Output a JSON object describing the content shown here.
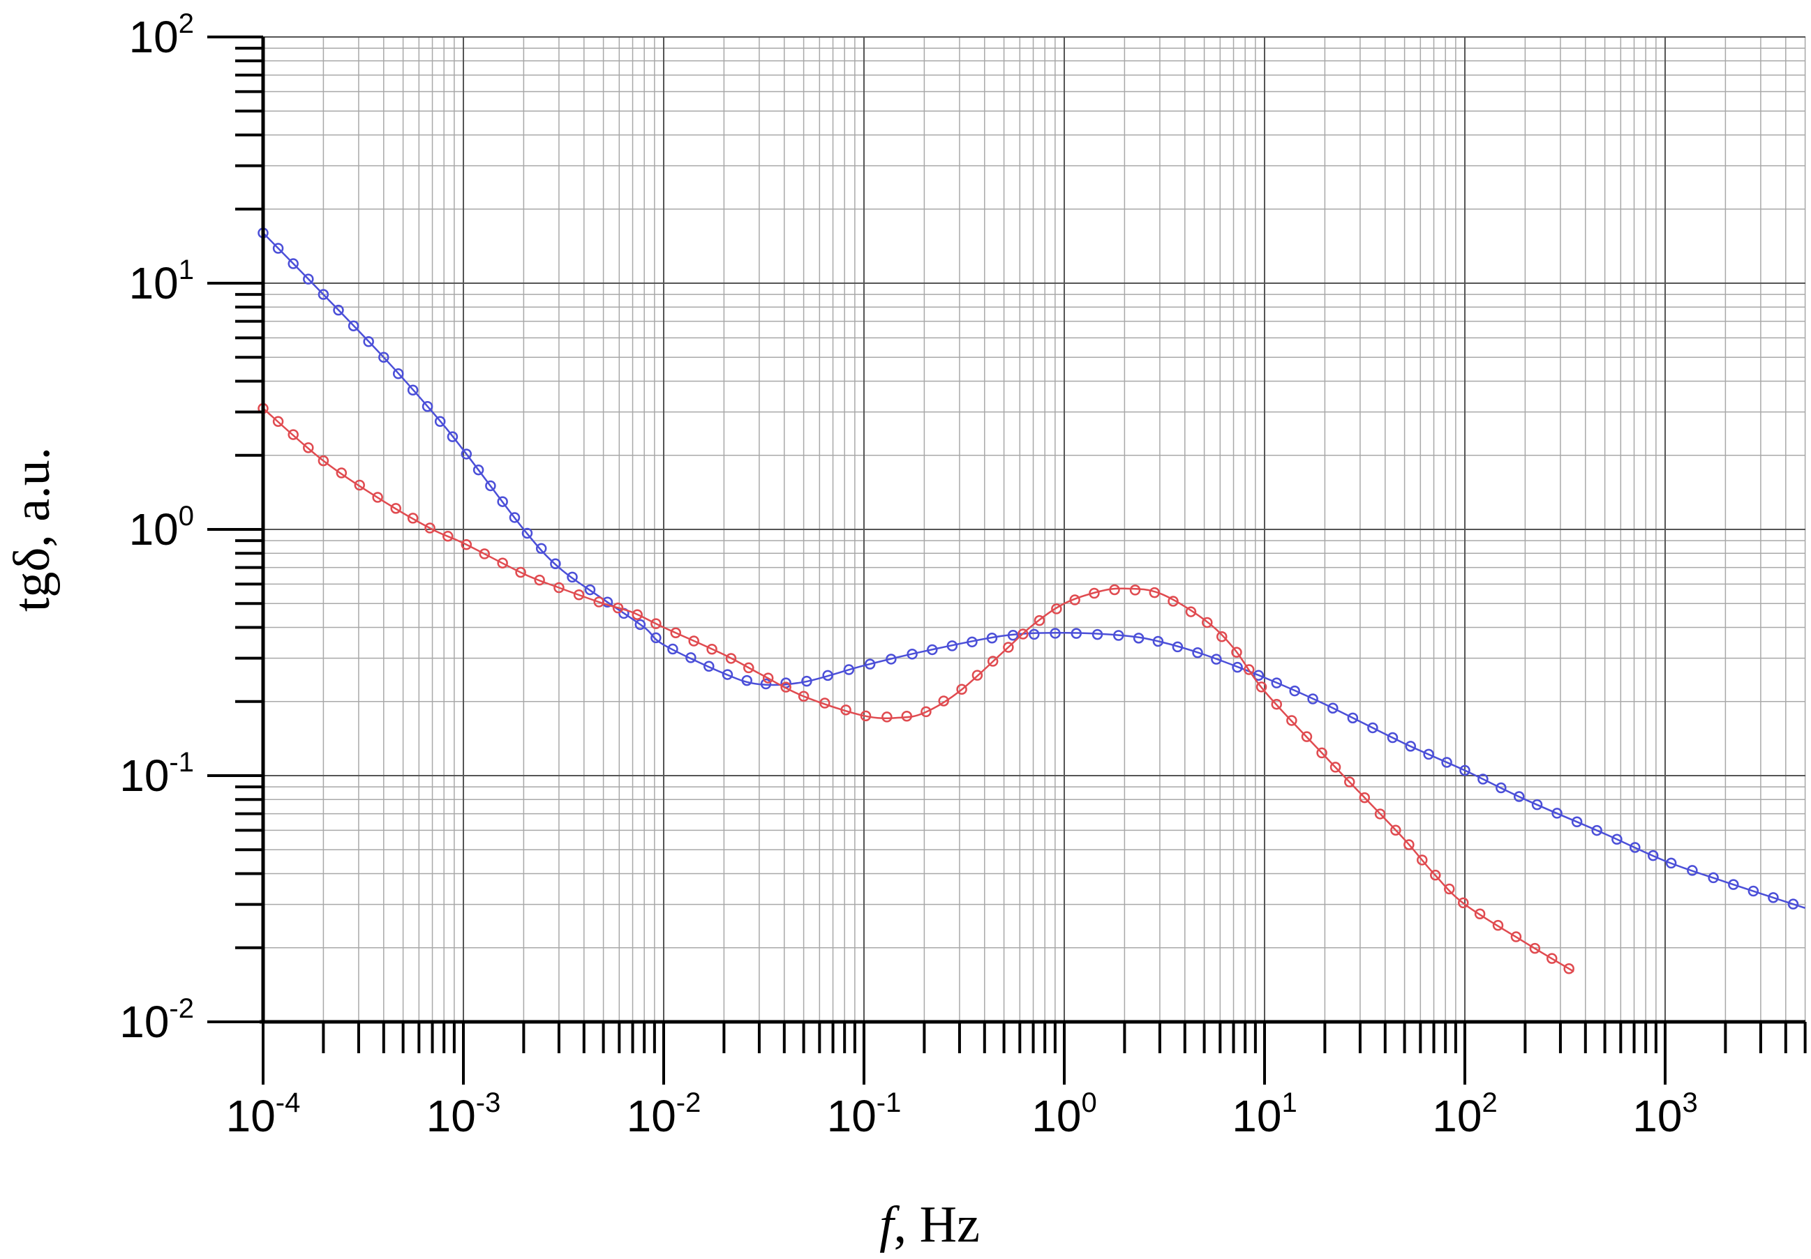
{
  "chart_data": {
    "type": "line",
    "title": "",
    "xlabel": {
      "italic": "f",
      "rest": ", Hz"
    },
    "ylabel": "tgδ, a.u.",
    "xscale": "log",
    "yscale": "log",
    "xlim": [
      0.0001,
      5000
    ],
    "ylim": [
      0.01,
      100
    ],
    "grid": true,
    "legend": "none",
    "x_ticks": [
      {
        "value": 0.0001,
        "base": "10",
        "exp": "-4"
      },
      {
        "value": 0.001,
        "base": "10",
        "exp": "-3"
      },
      {
        "value": 0.01,
        "base": "10",
        "exp": "-2"
      },
      {
        "value": 0.1,
        "base": "10",
        "exp": "-1"
      },
      {
        "value": 1,
        "base": "10",
        "exp": "0"
      },
      {
        "value": 10,
        "base": "10",
        "exp": "1"
      },
      {
        "value": 100,
        "base": "10",
        "exp": "2"
      },
      {
        "value": 1000,
        "base": "10",
        "exp": "3"
      }
    ],
    "y_ticks": [
      {
        "value": 0.01,
        "base": "10",
        "exp": "-2"
      },
      {
        "value": 0.1,
        "base": "10",
        "exp": "-1"
      },
      {
        "value": 1,
        "base": "10",
        "exp": "0"
      },
      {
        "value": 10,
        "base": "10",
        "exp": "1"
      },
      {
        "value": 100,
        "base": "10",
        "exp": "2"
      }
    ],
    "series": [
      {
        "color": "#4b4fd8",
        "marker": "open-circle",
        "x": [
          0.0001,
          0.0002,
          0.0004,
          0.0007,
          0.001,
          0.002,
          0.003,
          0.005,
          0.008,
          0.01,
          0.02,
          0.03,
          0.05,
          0.1,
          0.2,
          0.5,
          1,
          2,
          3,
          5,
          10,
          20,
          50,
          100,
          200,
          500,
          1000,
          2000,
          5000
        ],
        "y": [
          16,
          9,
          5,
          3,
          2.1,
          1.0,
          0.7,
          0.52,
          0.4,
          0.34,
          0.26,
          0.235,
          0.24,
          0.28,
          0.32,
          0.37,
          0.38,
          0.37,
          0.35,
          0.31,
          0.25,
          0.195,
          0.135,
          0.105,
          0.08,
          0.058,
          0.045,
          0.037,
          0.029
        ]
      },
      {
        "color": "#e04b50",
        "marker": "open-circle",
        "x": [
          0.0001,
          0.0002,
          0.0004,
          0.0007,
          0.001,
          0.002,
          0.003,
          0.005,
          0.007,
          0.01,
          0.02,
          0.03,
          0.05,
          0.1,
          0.15,
          0.2,
          0.3,
          0.5,
          0.7,
          1,
          1.5,
          2,
          3,
          5,
          7,
          10,
          20,
          30,
          50,
          70,
          100,
          200,
          350
        ],
        "y": [
          3.1,
          1.9,
          1.3,
          1.0,
          0.88,
          0.66,
          0.58,
          0.5,
          0.46,
          0.4,
          0.31,
          0.26,
          0.21,
          0.175,
          0.172,
          0.18,
          0.22,
          0.32,
          0.41,
          0.5,
          0.56,
          0.575,
          0.55,
          0.43,
          0.33,
          0.22,
          0.12,
          0.085,
          0.055,
          0.04,
          0.03,
          0.021,
          0.016
        ]
      }
    ]
  }
}
